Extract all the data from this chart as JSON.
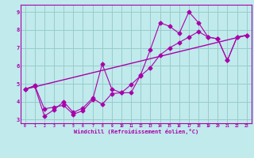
{
  "title": "",
  "xlabel": "Windchill (Refroidissement éolien,°C)",
  "xlim": [
    -0.5,
    23.5
  ],
  "ylim": [
    2.8,
    9.4
  ],
  "xticks": [
    0,
    1,
    2,
    3,
    4,
    5,
    6,
    7,
    8,
    9,
    10,
    11,
    12,
    13,
    14,
    15,
    16,
    17,
    18,
    19,
    20,
    21,
    22,
    23
  ],
  "yticks": [
    3,
    4,
    5,
    6,
    7,
    8,
    9
  ],
  "background_color": "#c0eaec",
  "grid_color": "#99cccc",
  "line_color": "#aa00aa",
  "line1_x": [
    0,
    1,
    2,
    3,
    4,
    5,
    6,
    7,
    8,
    9,
    10,
    11,
    12,
    13,
    14,
    15,
    16,
    17,
    18,
    19,
    20,
    21,
    22,
    23
  ],
  "line1_y": [
    4.7,
    4.9,
    3.6,
    3.7,
    3.8,
    3.3,
    3.5,
    4.1,
    6.1,
    4.7,
    4.5,
    4.5,
    5.5,
    6.9,
    8.4,
    8.2,
    7.8,
    9.0,
    8.4,
    7.6,
    7.5,
    6.3,
    7.6,
    7.7
  ],
  "line2_x": [
    0,
    1,
    2,
    3,
    4,
    5,
    6,
    7,
    8,
    9,
    10,
    11,
    12,
    13,
    14,
    15,
    16,
    17,
    18,
    19,
    20,
    21,
    22,
    23
  ],
  "line2_y": [
    4.7,
    4.85,
    3.2,
    3.55,
    4.0,
    3.4,
    3.65,
    4.2,
    3.85,
    4.45,
    4.5,
    4.95,
    5.45,
    5.9,
    6.6,
    7.0,
    7.3,
    7.6,
    7.9,
    7.6,
    7.5,
    6.3,
    7.6,
    7.7
  ],
  "line3_x": [
    0,
    23
  ],
  "line3_y": [
    4.7,
    7.7
  ]
}
